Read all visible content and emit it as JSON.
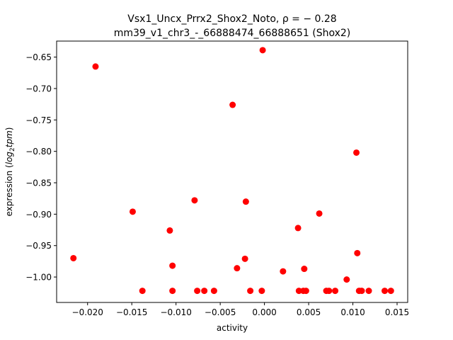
{
  "chart_data": {
    "type": "scatter",
    "title_line1": "Vsx1_Uncx_Prrx2_Shox2_Noto, ρ = − 0.28",
    "title_line2": "mm39_v1_chr3_-_66888474_66888651 (Shox2)",
    "xlabel": "activity",
    "ylabel_prefix": "expression (",
    "ylabel_log": "log",
    "ylabel_sub": "2",
    "ylabel_tpm": "tpm",
    "ylabel_suffix": ")",
    "xlim": [
      -0.0235,
      0.0162
    ],
    "ylim": [
      -1.0405,
      -0.6245
    ],
    "xticks": [
      {
        "value": -0.02,
        "label": "−0.020"
      },
      {
        "value": -0.015,
        "label": "−0.015"
      },
      {
        "value": -0.01,
        "label": "−0.010"
      },
      {
        "value": -0.005,
        "label": "−0.005"
      },
      {
        "value": 0.0,
        "label": "0.000"
      },
      {
        "value": 0.005,
        "label": "0.005"
      },
      {
        "value": 0.01,
        "label": "0.010"
      },
      {
        "value": 0.015,
        "label": "0.015"
      }
    ],
    "yticks": [
      {
        "value": -0.65,
        "label": "−0.65"
      },
      {
        "value": -0.7,
        "label": "−0.70"
      },
      {
        "value": -0.75,
        "label": "−0.75"
      },
      {
        "value": -0.8,
        "label": "−0.80"
      },
      {
        "value": -0.85,
        "label": "−0.85"
      },
      {
        "value": -0.9,
        "label": "−0.90"
      },
      {
        "value": -0.95,
        "label": "−0.95"
      },
      {
        "value": -1.0,
        "label": "−1.00"
      }
    ],
    "marker_color": "#ff0000",
    "points": [
      {
        "x": -0.0216,
        "y": -0.97
      },
      {
        "x": -0.0191,
        "y": -0.665
      },
      {
        "x": -0.0149,
        "y": -0.896
      },
      {
        "x": -0.0138,
        "y": -1.022
      },
      {
        "x": -0.0107,
        "y": -0.926
      },
      {
        "x": -0.0104,
        "y": -0.982
      },
      {
        "x": -0.0104,
        "y": -1.022
      },
      {
        "x": -0.0079,
        "y": -0.878
      },
      {
        "x": -0.0076,
        "y": -1.022
      },
      {
        "x": -0.0068,
        "y": -1.022
      },
      {
        "x": -0.0057,
        "y": -1.022
      },
      {
        "x": -0.0036,
        "y": -0.726
      },
      {
        "x": -0.0031,
        "y": -0.986
      },
      {
        "x": -0.0022,
        "y": -0.971
      },
      {
        "x": -0.0021,
        "y": -0.88
      },
      {
        "x": -0.0016,
        "y": -1.022
      },
      {
        "x": -0.0003,
        "y": -1.022
      },
      {
        "x": -0.0002,
        "y": -0.639
      },
      {
        "x": 0.0021,
        "y": -0.991
      },
      {
        "x": 0.0038,
        "y": -0.922
      },
      {
        "x": 0.0039,
        "y": -1.022
      },
      {
        "x": 0.0044,
        "y": -1.022
      },
      {
        "x": 0.0045,
        "y": -0.987
      },
      {
        "x": 0.0047,
        "y": -1.022
      },
      {
        "x": 0.0062,
        "y": -0.899
      },
      {
        "x": 0.007,
        "y": -1.022
      },
      {
        "x": 0.0073,
        "y": -1.022
      },
      {
        "x": 0.008,
        "y": -1.022
      },
      {
        "x": 0.0093,
        "y": -1.004
      },
      {
        "x": 0.0104,
        "y": -0.802
      },
      {
        "x": 0.0105,
        "y": -0.962
      },
      {
        "x": 0.0107,
        "y": -1.022
      },
      {
        "x": 0.011,
        "y": -1.022
      },
      {
        "x": 0.0118,
        "y": -1.022
      },
      {
        "x": 0.0136,
        "y": -1.022
      },
      {
        "x": 0.0143,
        "y": -1.022
      }
    ]
  }
}
